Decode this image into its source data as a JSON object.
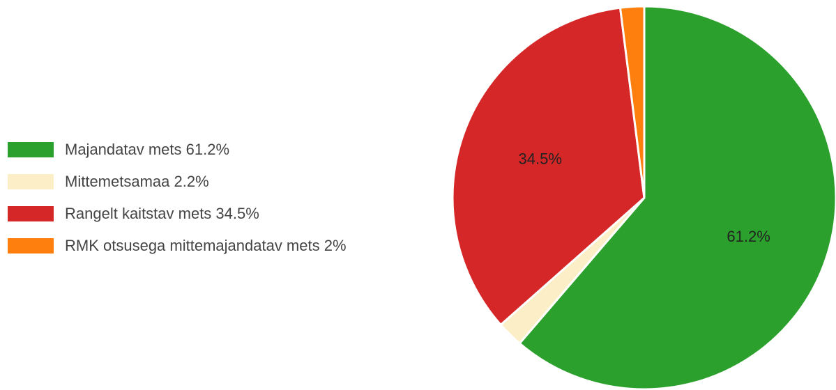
{
  "chart_data": {
    "type": "pie",
    "title": "",
    "legend_position": "left",
    "slices": [
      {
        "name": "Majandatav mets",
        "value": 61.2,
        "color": "#2ca02c",
        "legend_label": "Majandatav mets 61.2%",
        "data_label": "61.2%"
      },
      {
        "name": "Mittemetsamaa",
        "value": 2.2,
        "color": "#fcefc7",
        "legend_label": "Mittemetsamaa 2.2%",
        "data_label": ""
      },
      {
        "name": "Rangelt kaitstav mets",
        "value": 34.5,
        "color": "#d62728",
        "legend_label": "Rangelt kaitstav mets 34.5%",
        "data_label": "34.5%"
      },
      {
        "name": "RMK otsusega mittemajandatav mets",
        "value": 2.0,
        "color": "#ff7f0e",
        "legend_label": "RMK otsusega mittemajandatav mets 2%",
        "data_label": ""
      }
    ],
    "start_angle_deg": 0,
    "direction": "clockwise"
  }
}
